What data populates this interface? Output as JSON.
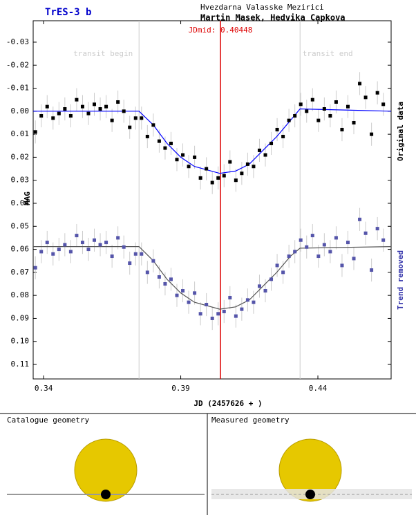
{
  "chart_data": {
    "type": "scatter",
    "title": "TrES-3 b",
    "observatory": "Hvezdarna Valasske Mezirici",
    "authors": "Martin Masek, Hedvika Capkova",
    "xlabel": "JD (2457626 + )",
    "ylabel": "MAG",
    "xlim": [
      0.3362,
      0.4667
    ],
    "xticks": [
      0.34,
      0.39,
      0.44
    ],
    "ylim": [
      -0.0393,
      0.1163
    ],
    "y_inverted": true,
    "yticks": [
      -0.03,
      -0.02,
      -0.01,
      {
        "value": 0,
        "label": "0.00"
      },
      0.01,
      0.02,
      0.03,
      0.04,
      0.05,
      0.06,
      0.07,
      0.08,
      0.09,
      {
        "value": 0.1,
        "label": "0.10"
      },
      0.11
    ],
    "markers": [
      {
        "x": 0.3748,
        "label": "transit begin",
        "color": "#cccccc"
      },
      {
        "x": 0.40448,
        "label": "JDmid: 0.40448",
        "color": "#dd0000"
      },
      {
        "x": 0.4335,
        "label": "transit end",
        "color": "#cccccc"
      }
    ],
    "x": [
      0.337,
      0.33915,
      0.3413,
      0.34345,
      0.3456,
      0.34775,
      0.3499,
      0.35205,
      0.3542,
      0.35635,
      0.3585,
      0.36065,
      0.3628,
      0.36495,
      0.3671,
      0.36925,
      0.3714,
      0.37355,
      0.3757,
      0.37785,
      0.38,
      0.38215,
      0.3843,
      0.38645,
      0.3886,
      0.39075,
      0.3929,
      0.39505,
      0.3972,
      0.39935,
      0.4015,
      0.40365,
      0.4058,
      0.40795,
      0.4101,
      0.41225,
      0.4144,
      0.41655,
      0.4187,
      0.42085,
      0.423,
      0.42515,
      0.4273,
      0.42945,
      0.4316,
      0.43375,
      0.4359,
      0.43805,
      0.4402,
      0.44235,
      0.4445,
      0.44665,
      0.4488,
      0.45095,
      0.4531,
      0.45525,
      0.4574,
      0.45955,
      0.4617,
      0.46385
    ],
    "series": [
      {
        "name": "Original data",
        "color": "#000000",
        "error": 0.005,
        "values": [
          0.009,
          0.002,
          -0.002,
          0.003,
          0.001,
          -0.001,
          0.002,
          -0.005,
          -0.002,
          0.001,
          -0.003,
          -0.001,
          -0.002,
          0.004,
          -0.004,
          0.0,
          0.007,
          0.003,
          0.003,
          0.011,
          0.006,
          0.013,
          0.016,
          0.014,
          0.021,
          0.019,
          0.024,
          0.02,
          0.029,
          0.025,
          0.031,
          0.029,
          0.028,
          0.022,
          0.03,
          0.027,
          0.023,
          0.024,
          0.017,
          0.019,
          0.014,
          0.008,
          0.011,
          0.004,
          0.002,
          -0.003,
          0.0,
          -0.005,
          0.004,
          -0.001,
          0.002,
          -0.004,
          0.008,
          -0.002,
          0.005,
          -0.012,
          -0.006,
          0.01,
          -0.008,
          -0.003
        ],
        "model_color": "#0000ff",
        "model_x": [
          0.3362,
          0.3748,
          0.38,
          0.385,
          0.39,
          0.395,
          0.4042,
          0.41,
          0.415,
          0.42,
          0.425,
          0.43,
          0.4335,
          0.4667
        ],
        "model": [
          0,
          0,
          0.006,
          0.014,
          0.02,
          0.024,
          0.027,
          0.026,
          0.023,
          0.017,
          0.011,
          0.004,
          -0.001,
          0
        ]
      },
      {
        "name": "Trend removed",
        "color": "#5555aa",
        "error": 0.005,
        "values": [
          0.068,
          0.061,
          0.057,
          0.062,
          0.06,
          0.058,
          0.061,
          0.054,
          0.057,
          0.06,
          0.056,
          0.058,
          0.057,
          0.063,
          0.055,
          0.059,
          0.066,
          0.062,
          0.062,
          0.07,
          0.065,
          0.072,
          0.075,
          0.073,
          0.08,
          0.078,
          0.083,
          0.079,
          0.088,
          0.084,
          0.09,
          0.088,
          0.087,
          0.081,
          0.089,
          0.086,
          0.082,
          0.083,
          0.076,
          0.078,
          0.073,
          0.067,
          0.07,
          0.063,
          0.061,
          0.056,
          0.059,
          0.054,
          0.063,
          0.058,
          0.061,
          0.055,
          0.067,
          0.057,
          0.064,
          0.047,
          0.053,
          0.069,
          0.051,
          0.056
        ],
        "model_color": "#555555",
        "model_x": [
          0.3362,
          0.3748,
          0.38,
          0.385,
          0.39,
          0.395,
          0.4042,
          0.41,
          0.415,
          0.42,
          0.425,
          0.43,
          0.4335,
          0.4667
        ],
        "model": [
          0.0588,
          0.0588,
          0.065,
          0.073,
          0.079,
          0.083,
          0.086,
          0.085,
          0.082,
          0.076,
          0.07,
          0.063,
          0.0595,
          0.0588
        ]
      }
    ],
    "panels": [
      "Catalogue geometry",
      "Measured geometry"
    ]
  }
}
